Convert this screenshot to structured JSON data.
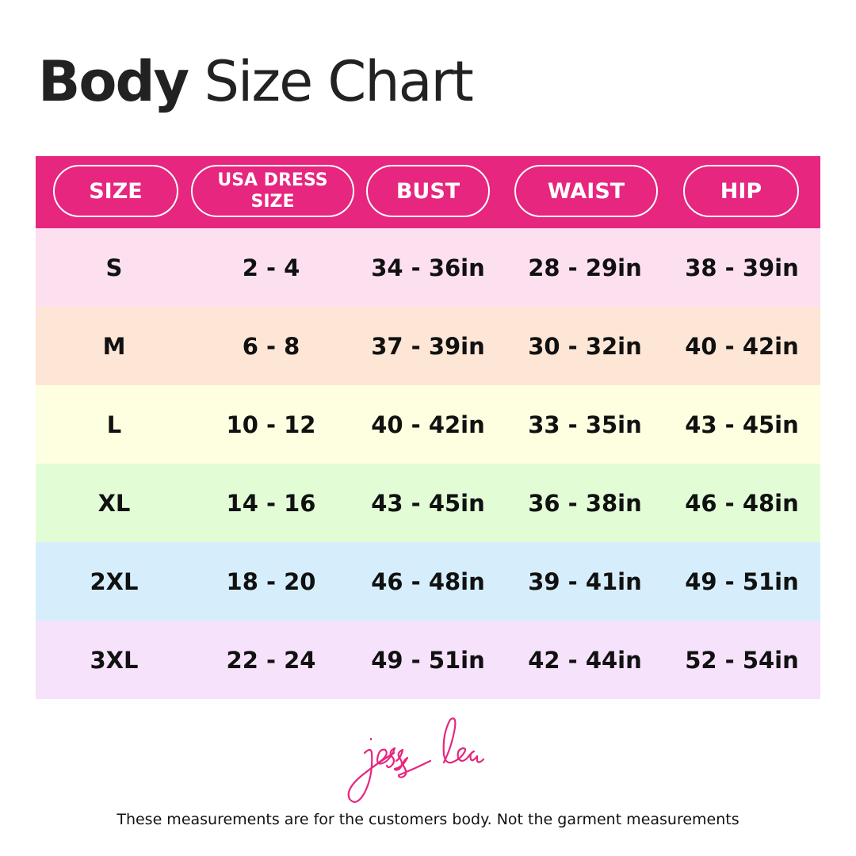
{
  "title": {
    "bold": "Body",
    "rest": "Size Chart"
  },
  "colors": {
    "header": "#e6267f",
    "rows": [
      "#fde0f0",
      "#fde6d6",
      "#fefee0",
      "#e2fdd6",
      "#d6eefc",
      "#f6e2fb"
    ],
    "logo": "#e6267f"
  },
  "columns": [
    "SIZE",
    "USA DRESS SIZE",
    "BUST",
    "WAIST",
    "HIP"
  ],
  "rows": [
    [
      "S",
      "2 - 4",
      "34 - 36in",
      "28 - 29in",
      "38 - 39in"
    ],
    [
      "M",
      "6 - 8",
      "37 - 39in",
      "30 - 32in",
      "40 - 42in"
    ],
    [
      "L",
      "10 - 12",
      "40 - 42in",
      "33 - 35in",
      "43 - 45in"
    ],
    [
      "XL",
      "14 - 16",
      "43 - 45in",
      "36 - 38in",
      "46 - 48in"
    ],
    [
      "2XL",
      "18 - 20",
      "46 - 48in",
      "39 - 41in",
      "49 - 51in"
    ],
    [
      "3XL",
      "22 - 24",
      "49 - 51in",
      "42 - 44in",
      "52 - 54in"
    ]
  ],
  "logo": {
    "text": "jess lea"
  },
  "footer": "These measurements are for the customers body. Not the garment measurements"
}
